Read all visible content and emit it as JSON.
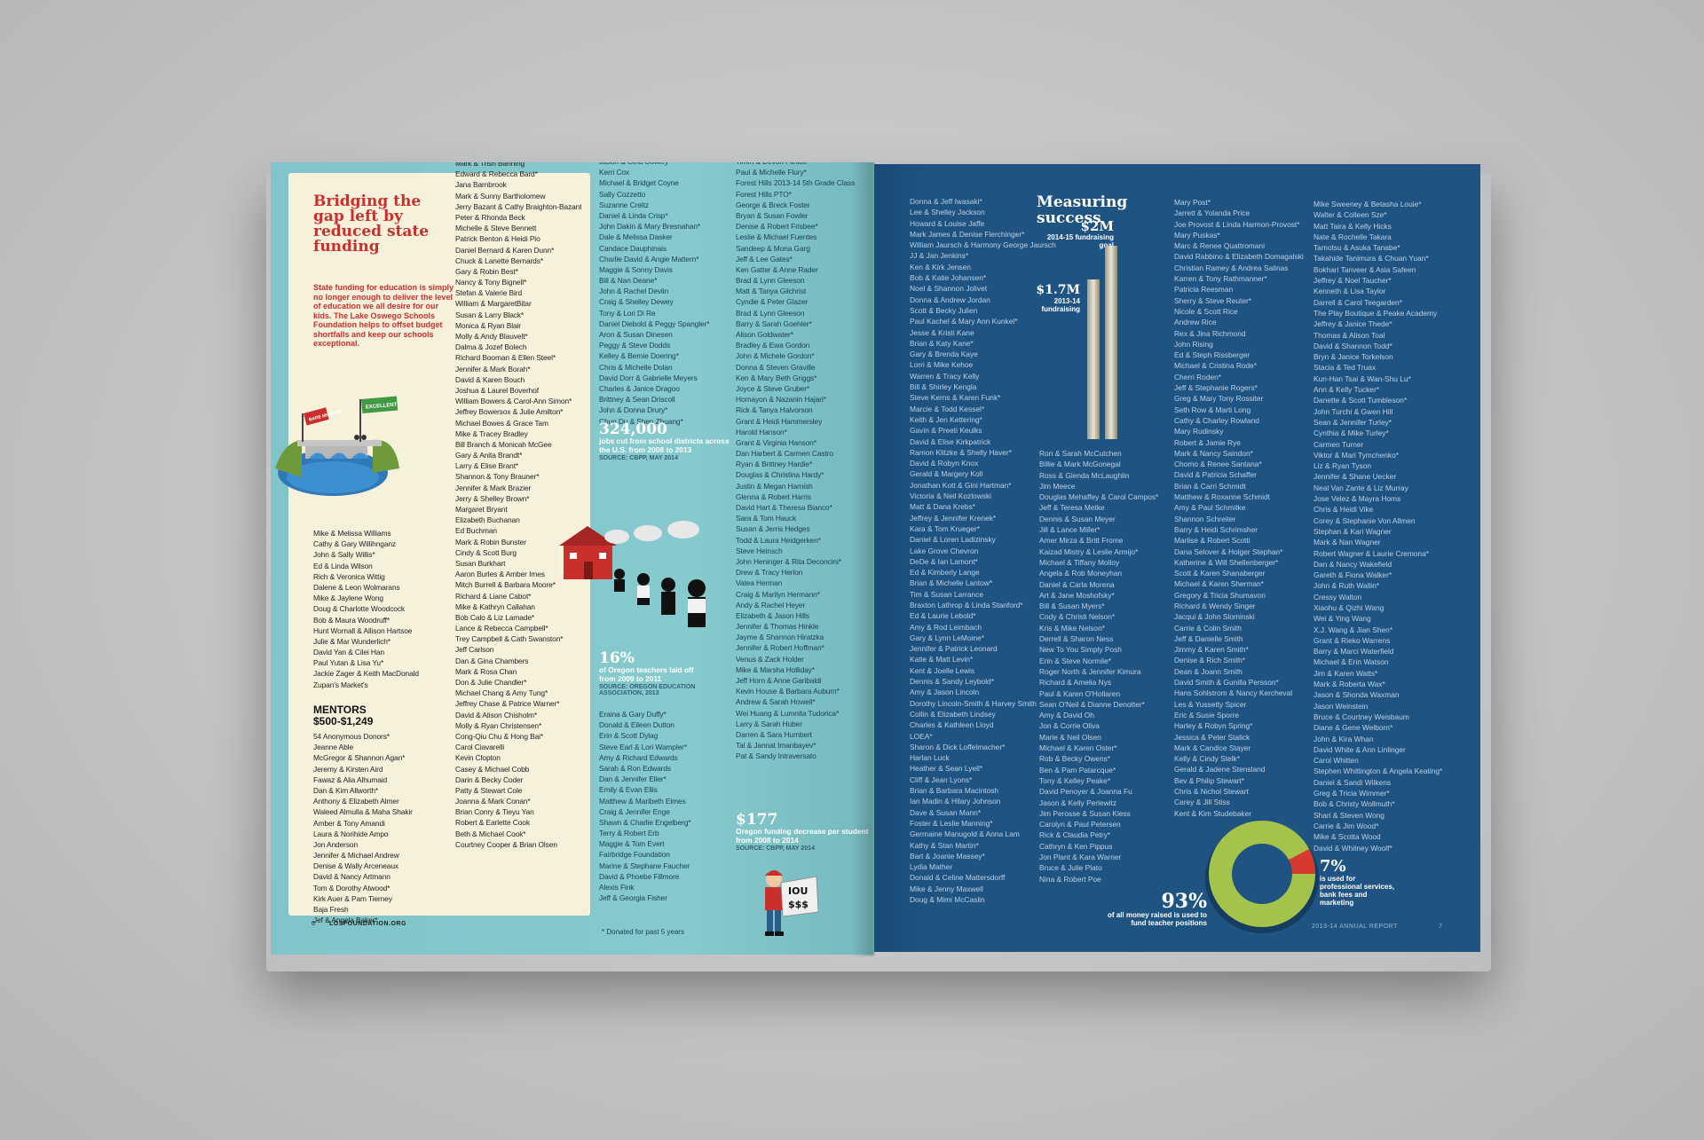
{
  "left_page": {
    "title": "Bridging the gap left by reduced state funding",
    "intro": "State funding for education is simply no longer enough to deliver the level of education we all desire for our kids. The Lake Oswego Schools Foundation helps to offset budget shortfalls and keep our schools exceptional.",
    "illustration": {
      "flag_low": "BARE MINIMUM",
      "flag_high": "EXCELLENT"
    },
    "col1_names": [
      "Mike & Melissa Williams",
      "Cathy & Gary Willihnganz",
      "John & Sally Willis*",
      "Ed & Linda Wilson",
      "Rich & Veronica Wittig",
      "Dalene & Leon Wolmarans",
      "Mike & Jaylene Wong",
      "Doug & Charlotte Woodcock",
      "Bob & Maura Woodruff*",
      "Hunt Wornall & Allison Hartsoe",
      "Julie & Mar Wunderlich*",
      "David Yan & Cilei Han",
      "Paul Yutan & Lisa Yu*",
      "Jackie Zager & Keith MacDonald",
      "Zupan's Market's"
    ],
    "mentors_heading": "MENTORS $500-$1,249",
    "mentors": [
      "54 Anonymous Donors*",
      "Jeanne Able",
      "McGregor & Shannon Agan*",
      "Jeremy & Kirsten Aird",
      "Fawaz & Alia Alhumaid",
      "Dan & Kim Allworth*",
      "Anthony & Elizabeth Almer",
      "Waleed Almulla & Maha Shakir",
      "Amber & Tony Amandi",
      "Laura & Norihide Ampo",
      "Jon Anderson",
      "Jennifer & Michael Andrew",
      "Denise & Wally Arceneaux",
      "David & Nancy Artmann",
      "Tom & Dorothy Atwood*",
      "Kirk Auer & Pam Tierney",
      "Baja Fresh",
      "Jef & Angela Baker*"
    ],
    "col2_names": [
      "Mark & Trish Banning",
      "Edward & Rebecca Bard*",
      "Jana Barnbrook",
      "Mark & Sunny Bartholomew",
      "Jerry Bazant & Cathy Braighton-Bazant",
      "Peter & Rhonda Beck",
      "Michelle & Steve Bennett",
      "Patrick Benton & Heidi Pio",
      "Daniel Bernard & Karen Dunn*",
      "Chuck & Lanette Bernards*",
      "Gary & Robin Best*",
      "Nancy & Tony Bignell*",
      "Stefan & Valerie Bird",
      "William & MargaretBitar",
      "Susan & Larry Black*",
      "Monica & Ryan Blair",
      "Molly & Andy Blauvelt*",
      "Dalma & Jozef Bolech",
      "Richard Booman & Ellen Steel*",
      "Jennifer & Mark Borah*",
      "David & Karen Bouch",
      "Joshua & Laurel Boverhof",
      "William Bowers & Carol-Ann Simon*",
      "Jeffrey Bowersox & Julie Amilton*",
      "Michael Bowes & Grace Tam",
      "Mike & Tracey Bradley",
      "Bill Branch & Monicah McGee",
      "Gary & Anita Brandt*",
      "Larry & Elise Brant*",
      "Shannon & Tony Brauner*",
      "Jennifer & Mark Brazier",
      "Jerry & Shelley Brown*",
      "Margaret Bryant",
      "Elizabeth Buchanan",
      "Ed Buchman",
      "Mark & Robin Bunster",
      "Cindy & Scott Burg",
      "Susan Burkhart",
      "Aaron Burles & Amber Imes",
      "Mitch Burrell & Barbara Moore*",
      "Richard & Liane Cabot*",
      "Mike & Kathryn Callahan",
      "Bob Calo & Liz Lamade*",
      "Lance & Rebecca Campbell*",
      "Trey Campbell & Cath Swanston*",
      "Jeff Carlson",
      "Dan & Gina Chambers",
      "Mark & Rosa Chan",
      "Don & Julie Chandler*",
      "Michael Chang & Amy Tung*",
      "Jeffrey Chase & Patrice Warner*",
      "David & Alison Chisholm*",
      "Molly & Ryan Christensen*",
      "Cong-Qiu Chu & Hong Bai*",
      "Carol Ciavarelli",
      "Kevin Clopton",
      "Casey & Michael Cobb",
      "Darin & Becky Coder",
      "Patty & Stewart Cole",
      "Joanna & Mark Conan*",
      "Brian Conry & Tieyu Yan",
      "Robert & Earlette Cook",
      "Beth & Michael Cook*",
      "Courtney Cooper & Brian Olsen"
    ],
    "col3_names": [
      "Jason & Gina Cowley*",
      "Kerri Cox",
      "Michael & Bridget Coyne",
      "Sally Cozzetto",
      "Suzanne Creitz",
      "Daniel & Linda Crisp*",
      "John Dakin & Mary Bresnahan*",
      "Dale & Melissa Dasker",
      "Candace Dauphinais",
      "Charlie David & Angie Mattern*",
      "Maggie & Sonny Davis",
      "Bill & Nan Deane*",
      "John & Rachel Devlin",
      "Craig & Shelley Dewey",
      "Tony & Lori Di Re",
      "Daniel Diebold & Peggy Spangler*",
      "Aron & Susan Dinesen",
      "Peggy & Steve Dodds",
      "Kelley & Bernie Doering*",
      "Chris & Michelle Dolan",
      "David Dorr & Gabrielle Meyers",
      "Charles & Janice Dragoo",
      "Brittney & Sean Driscoll",
      "John & Donna Drury*",
      "Chun Du & Shen Zhuang*"
    ],
    "col3_names_b": [
      "Eraina & Gary Duffy*",
      "Donald & Eileen Dutton",
      "Erin & Scott Dylag",
      "Steve Earl & Lori Wampler*",
      "Amy & Richard Edwards",
      "Sarah & Ron Edwards",
      "Dan & Jennifer Eller*",
      "Emily & Evan Ellis",
      "Matthew & Maribeth Elmes",
      "Craig & Jennifer Enge",
      "Shawn & Charlie Engelberg*",
      "Terry & Robert Erb",
      "Maggie & Tom Evert",
      "Fairbridge Foundation",
      "Marine & Stephane Faucher",
      "David & Phoebe Fillmore",
      "Alexis Fink",
      "Jeff & Georgia Fisher"
    ],
    "col4_names": [
      "Timm & Devon Flintoff",
      "Paul & Michelle Flury*",
      "Forest Hills 2013-14 5th Grade Class",
      "Forest Hills PTO*",
      "George & Breck Foster",
      "Bryan & Susan Fowler",
      "Denise & Robert Frisbee*",
      "Leslie & Michael Fuentes",
      "Sandeep & Mona Garg",
      "Jeff & Lee Gates*",
      "Ken Gatter & Anne Rader",
      "Brad & Lynn Gleeson",
      "Matt & Tanya Gilchrist",
      "Cyndie & Peter Glazer",
      "Brad & Lynn Gleeson",
      "Barry & Sarah Goehler*",
      "Alison Goldwater*",
      "Bradley & Ewa Gordon",
      "John & Michele Gordon*",
      "Donna & Steven Graville",
      "Ken & Mary Beth Griggs*",
      "Joyce & Steve Gruber*",
      "Homayon & Nazanin Hajari*",
      "Rick & Tanya Halvorson",
      "Grant & Heidi Hammersley",
      "Harold Hanson*",
      "Grant & Virginia Hanson*",
      "Dan Harbert & Carmen Castro",
      "Ryan & Brittney Hardie*",
      "Douglas & Christina Hardy*",
      "Justin & Megan Harnish",
      "Glenna & Robert Harris",
      "David Hart & Theresa Bianco*",
      "Sara & Tom Hauck",
      "Susan & Jerris Hedges",
      "Todd & Laura Heidgerken*",
      "Steve Heinsch",
      "John Heninger & Rita Deconcini*",
      "Drew & Tracy Herlon",
      "Vatea Herman",
      "Craig & Marilyn Hermann*",
      "Andy & Rachel Heyer",
      "Elizabeth & Jason Hills",
      "Jennifer & Thomas Hinkle",
      "Jayme & Shannon Hiratzka",
      "Jennifer & Robert Hoffman*",
      "Venus & Zack Holder",
      "Mike & Marsha Holliday*",
      "Jeff Horn & Anne Garibaldi",
      "Kevin House & Barbara Auburn*",
      "Andrew & Sarah Howell*",
      "Wei Huang & Lumnita Tudorica*",
      "Larry & Sarah Huber",
      "Darren & Sara Humbert",
      "Tal & Jannat Imanbayev*",
      "Pat & Sandy Intraversato"
    ],
    "stat1": {
      "value": "324,000",
      "desc": "jobs cut from school districts across the U.S. from 2008 to 2013",
      "source": "SOURCE: CBPP, MAY 2014"
    },
    "stat2": {
      "value": "16%",
      "desc": "of Oregon teachers laid off from 2009 to 2011",
      "source": "SOURCE: OREGON EDUCATION ASSOCIATION, 2013"
    },
    "stat3": {
      "value": "$177",
      "desc": "Oregon funding decrease per student from 2008 to 2014",
      "source": "SOURCE: CBPP, MAY 2014"
    },
    "sign_text": "IOU $$$",
    "footnote": "* Donated for past 5 years",
    "folio_num": "6",
    "folio_url": "LOSFOUNDATION.ORG"
  },
  "right_page": {
    "title": "Measuring success",
    "goal_2m": {
      "value": "$2M",
      "label": "2014-15 fundraising goal"
    },
    "goal_17m": {
      "value": "$1.7M",
      "label": "2013-14 fundraising"
    },
    "pct93": {
      "value": "93%",
      "label": "of all money raised is used to fund teacher positions"
    },
    "pct7": {
      "value": "7%",
      "label": "is used for professional services, bank fees and marketing"
    },
    "folio_text": "2013-14 ANNUAL REPORT",
    "folio_num": "7",
    "col1_names": [
      "Donna & Jeff Iwasaki*",
      "Lee & Shelley Jackson",
      "Howard & Louise Jaffe",
      "Mark James & Denise Flerchinger*",
      "William Jaursch & Harmony George Jaursch",
      "JJ & Jan Jenkins*",
      "Ken & Kirk Jensen",
      "Bob & Katie Johansen*",
      "Noel & Shannon Jolivet",
      "Donna & Andrew Jordan",
      "Scott & Becky Julien",
      "Paul Kachel & Mary Ann Kunkel*",
      "Jesse & Kristi Kane",
      "Brian & Katy Kane*",
      "Gary & Brenda Kaye",
      "Lorri & Mike Kehoe",
      "Warren & Tracy Kelly",
      "Bill & Shirley Kengla",
      "Steve Kerns & Karen Funk*",
      "Marcie & Todd Kessel*",
      "Keith & Jen Kettering*",
      "Gavin & Preeti Keulks",
      "David & Elise Kirkpatrick",
      "Ramon Klitzke & Shelly Haver*",
      "David & Robyn Knox",
      "Gerald & Margery Koll",
      "Jonathan Kott & Gini Hartman*",
      "Victoria & Neil Kozlowski",
      "Matt & Dana Krebs*",
      "Jeffrey & Jennifer Krenek*",
      "Kara & Tom Krueger*",
      "Daniel & Loren Ladizinsky",
      "Lake Grove Chevron",
      "DeDe & Ian Lamont*",
      "Ed & Kimberly Lange",
      "Brian & Michelle Lantow*",
      "Tim & Susan Larrance",
      "Braxton Lathrop & Linda Stanford*",
      "Ed & Laurie Lebold*",
      "Amy & Rod Leimbach",
      "Gary & Lynn LeMoine*",
      "Jennifer & Patrick Leonard",
      "Katie & Matt Levin*",
      "Kent & Joelle Lewis",
      "Dennis & Sandy Leybold*",
      "Amy & Jason Lincoln",
      "Dorothy Lincoln-Smith & Harvey Smith",
      "Collin & Elizabeth Lindsey",
      "Charles & Kathleen Lloyd",
      "LOEA*",
      "Sharon & Dick Loffelmacher*",
      "Harlan Luck",
      "Heather & Sean Lyell*",
      "Cliff & Jean Lyons*",
      "Brian & Barbara Macintosh",
      "Ian Madin & Hilary Johnson",
      "Dave & Susan Mann*",
      "Foster & Leslie Manning*",
      "Germaine Manugold & Anna Lam",
      "Kathy & Stan Martin*",
      "Bart & Joanie Massey*",
      "Lydia Mather",
      "Donald & Celine Mattersdorff",
      "Mike & Jenny Maxwell",
      "Doug & Mimi McCaslin"
    ],
    "col2_names": [
      "Ron & Sarah McCutchen",
      "Billie & Mark McGonegal",
      "Ross & Glenda McLaughlin",
      "Jim Meece",
      "Douglas Mehaffey & Carol Campos*",
      "Jeff & Teresa Metke",
      "Dennis & Susan Meyer",
      "Jill & Lance Miller*",
      "Amer Mirza & Britt Frome",
      "Kaizad Mistry & Leslie Armijo*",
      "Michael & Tiffany Molloy",
      "Angela & Rob Moneyhan",
      "Daniel & Carla Morena",
      "Art & Jane Moshofsky*",
      "Bill & Susan Myers*",
      "Cody & Christi Nelson*",
      "Kris & Mike Nelson*",
      "Derrell & Sharon Ness",
      "New To You Simply Posh",
      "Erin & Steve Normile*",
      "Roger North & Jennifer Kimura",
      "Richard & Amelia Nys",
      "Paul & Karen O'Hollaren",
      "Sean O'Neil & Dianne Denotter*",
      "Amy & David Oh",
      "Jon & Corrie Oliva",
      "Marie & Neil Olsen",
      "Michael & Karen Oster*",
      "Rob & Becky Owens*",
      "Ben & Pam Patarcque*",
      "Tony & Kelley Peake*",
      "David Penoyer & Joanna Fu",
      "Jason & Kelly Perlewitz",
      "Jim Perosse & Susan Kless",
      "Carolyn & Paul Petersen",
      "Rick & Claudia Petry*",
      "Cathryn & Ken Pippus",
      "Jon Plant & Kara Warner",
      "Bruce & Julie Plato",
      "Nina & Robert Poe"
    ],
    "col3_names": [
      "Mary Post*",
      "Jarrett & Yolanda Price",
      "Joe Provost & Linda Harmon-Provost*",
      "Mary Puskas*",
      "Marc & Renee Quattromani",
      "David Rabbino & Elizabeth Domagalski",
      "Christian Ramey & Andrea Salinas",
      "Karren & Tony Rathmanner*",
      "Patricia Reesman",
      "Sherry & Steve Reuter*",
      "Nicole & Scott Rice",
      "Andrew Rice",
      "Rex & Jina Richmond",
      "John Rising",
      "Ed & Steph Rissberger",
      "Michael & Cristina Rode*",
      "Cherri Roden*",
      "Jeff & Stephanie Rogers*",
      "Greg & Mary Tony Rossiter",
      "Seth Row & Marti Long",
      "Cathy & Charley Rowland",
      "Mary Rudinsky",
      "Robert & Jamie Rye",
      "Mark & Nancy Saindon*",
      "Chomo & Renee Santana*",
      "David & Patricia Schaffer",
      "Brian & Carri Schmidt",
      "Matthew & Roxanne Schmidt",
      "Amy & Paul Schmitke",
      "Shannon Schreiter",
      "Barry & Heidi Schrimsher",
      "Marlise & Robert Scotti",
      "Dana Selover & Holger Stephan*",
      "Katherine & Will Shellenberger*",
      "Scott & Karen Shanaberger",
      "Michael & Karen Sherman*",
      "Gregory & Tricia Shumavon",
      "Richard & Wendy Singer",
      "Jacqui & John Slominski",
      "Carrie & Colin Smith",
      "Jeff & Danielle Smith",
      "Jimmy & Karen Smith*",
      "Denise & Rich Smith*",
      "Dean & Joann Smith",
      "David Smith & Gunilla Persson*",
      "Hans Sohlstrom & Nancy Kercheval",
      "Les & Yussetty Spicer",
      "Eric & Susie Sporre",
      "Harley & Robyn Spring*",
      "Jessica & Peter Stalick",
      "Mark & Candice Stayer",
      "Kelly & Cindy Stelk*",
      "Gerald & Jadene Stensland",
      "Bev & Philip Stewart*",
      "Chris & Nichol Stewart",
      "Carey & Jill Stiss",
      "Kent & Kim Studebaker"
    ],
    "col4_names": [
      "Mike Sweeney & Betasha Louie*",
      "Walter & Colleen Sze*",
      "Matt Taira & Kelly Hicks",
      "Nate & Rochelle Takara",
      "Tamotsu & Asuka Tanabe*",
      "Takahide Tanimura & Chuan Yuan*",
      "Bokhari Tanveer & Asia Safeen",
      "Jeffrey & Noel Taucher*",
      "Kenneth & Lisa Taylor",
      "Darrell & Carol Teegarden*",
      "The Play Boutique & Peake Academy",
      "Jeffrey & Janice Thede*",
      "Thomas & Alison Toal",
      "David & Shannon Todd*",
      "Bryn & Janice Torkelson",
      "Stacia & Ted Truax",
      "Kun-Han Tsai & Wan-Shu Lu*",
      "Ann & Kelly Tucker*",
      "Danette & Scott Tumbleson*",
      "John Turchi & Gwen Hill",
      "Sean & Jennifer Turley*",
      "Cynthia & Mike Turley*",
      "Carmen Turner",
      "Viktor & Mari Tymchenko*",
      "Liz & Ryan Tyson",
      "Jennifer & Shane Uecker",
      "Neal Van Zante & Liz Murray",
      "Jose Velez & Mayra Homs",
      "Chris & Heidi Vike",
      "Corey & Stephanie Von Allmen",
      "Stephan & Kari Wagner",
      "Mark & Nan Wagner",
      "Robert Wagner & Laurie Cremona*",
      "Dan & Nancy Wakefield",
      "Gareth & Fiona Walker*",
      "John & Ruth Wallin*",
      "Cressy Walton",
      "Xiaohu & Qizhi Wang",
      "Wei & Ying Wang",
      "X.J. Wang & Jian Shen*",
      "Grant & Rieko Warrens",
      "Barry & Marci Waterfield",
      "Michael & Erin Watson",
      "Jim & Karen Watts*",
      "Mark & Roberta Wax*",
      "Jason & Shonda Waxman",
      "Jason Weinstein",
      "Bruce & Courtney Weisbaum",
      "Diane & Gene Welborn*",
      "John & Kira Whan",
      "David White & Ann Linlinger",
      "Carol Whitten",
      "Stephen Whittington & Angela Keating*",
      "Daniel & Sandi Wilkens",
      "Greg & Tricia Wimmer*",
      "Bob & Christy Wollmuth*",
      "Shari & Steven Wong",
      "Carrie & Jim Wood*",
      "Mike & Scotta Wood",
      "David & Whitney Woolf*"
    ]
  },
  "colors": {
    "teal_page": "#86cacd",
    "navy_page": "#1f5482",
    "red": "#c9302c",
    "cream": "#f7f1dc",
    "donut_green": "#a4c34a",
    "donut_red": "#d63a2f"
  },
  "chart_data": {
    "type": "pie",
    "categories": [
      "of all money raised is used to fund teacher positions",
      "is used for professional services, bank fees and marketing"
    ],
    "values": [
      93,
      7
    ]
  }
}
